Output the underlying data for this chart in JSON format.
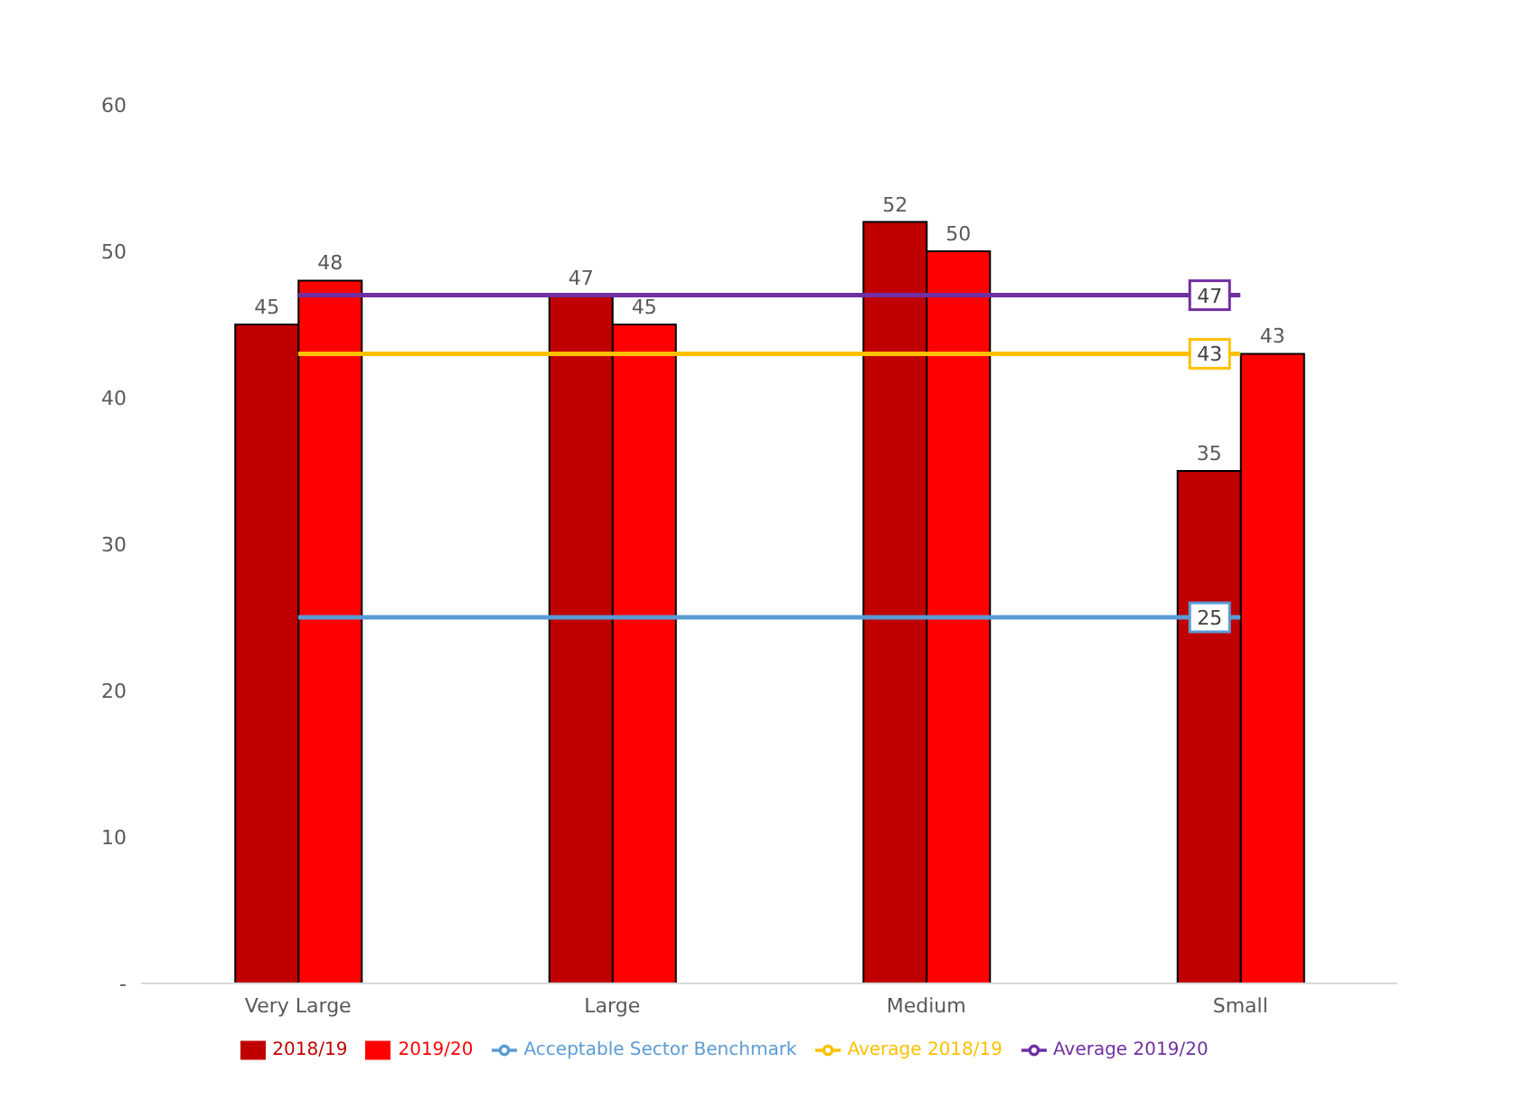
{
  "chart_data": {
    "type": "bar",
    "categories": [
      "Very Large",
      "Large",
      "Medium",
      "Small"
    ],
    "series": [
      {
        "name": "2018/19",
        "color": "#c00000",
        "values": [
          45,
          47,
          52,
          35
        ],
        "value_labels": [
          "45",
          "47",
          "52",
          "35"
        ]
      },
      {
        "name": "2019/20",
        "color": "#ff0000",
        "values": [
          48,
          45,
          50,
          43
        ],
        "value_labels": [
          "48",
          "45",
          "50",
          "43"
        ]
      },
      {
        "name": "Average 2018/19",
        "type": "line",
        "color": "#ffc000",
        "values": [
          43,
          43,
          43,
          43
        ],
        "value_labels": [
          null,
          null,
          null,
          "43"
        ]
      },
      {
        "name": "Average 2019/20",
        "type": "line",
        "color": "#7030a0",
        "values": [
          47,
          47,
          47,
          47
        ],
        "value_labels": [
          null,
          null,
          null,
          "47"
        ]
      },
      {
        "name": "Acceptable Sector Benchmark",
        "type": "line",
        "color": "#5b9bd5",
        "values": [
          25,
          25,
          25,
          25
        ],
        "value_labels": [
          null,
          null,
          null,
          "25"
        ]
      }
    ],
    "ylim": [
      0,
      60
    ],
    "yticks": [
      {
        "value": 0,
        "label": "-"
      },
      10,
      20,
      30,
      40,
      50,
      60
    ],
    "grid": false,
    "legend": "bottom",
    "marker": "none"
  }
}
